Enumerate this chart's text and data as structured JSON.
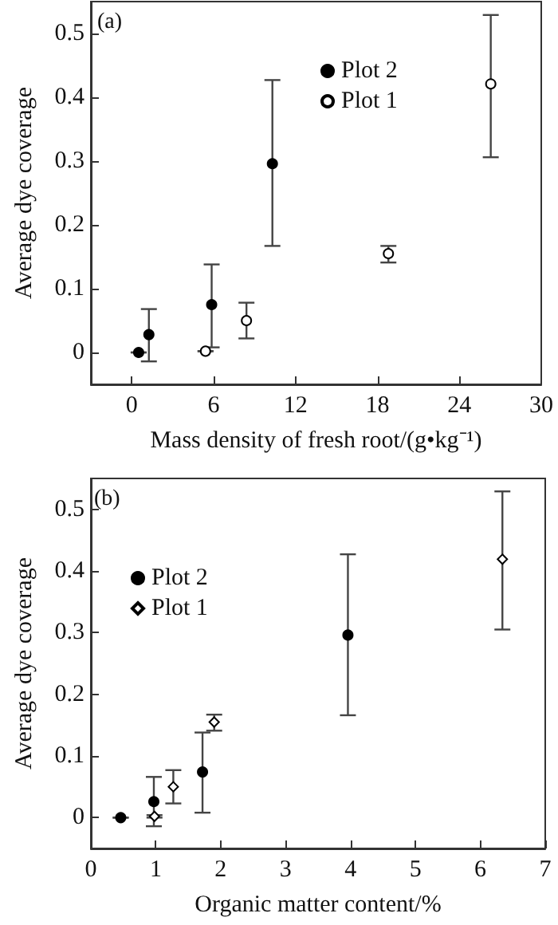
{
  "chart_data": [
    {
      "type": "scatter",
      "title": "(a)",
      "xlabel": "Mass density of fresh root/(g•kg⁻¹)",
      "ylabel": "Average dye coverage",
      "xlim": [
        -3,
        30
      ],
      "xticks": [
        0,
        6,
        12,
        18,
        24,
        30
      ],
      "ylim": [
        -0.05,
        0.55
      ],
      "yticks": [
        0,
        0.1,
        0.2,
        0.3,
        0.4,
        0.5
      ],
      "grid": false,
      "legend": "top right",
      "series": [
        {
          "name": "Plot 2",
          "color": "#000000",
          "marker": "circle",
          "x": [
            0.5,
            1.25,
            5.85,
            10.3
          ],
          "values": [
            0,
            0.028,
            0.075,
            0.296
          ],
          "errors": [
            0,
            [
              -0.014,
              0.068
            ],
            [
              0.008,
              0.138
            ],
            [
              0.167,
              0.427
            ]
          ]
        },
        {
          "name": "Plot 1",
          "color": "#ffffff",
          "marker": "circle",
          "x": [
            5.4,
            8.4,
            18.8,
            26.3
          ],
          "values": [
            0.002,
            0.05,
            0.155,
            0.421
          ],
          "errors": [
            0,
            [
              0.022,
              0.078
            ],
            [
              0.141,
              0.167
            ],
            [
              0.306,
              0.529
            ]
          ]
        }
      ]
    },
    {
      "type": "scatter",
      "title": "(b)",
      "xlabel": "Organic matter content/%",
      "ylabel": "Average dye coverage",
      "xlim": [
        0,
        7
      ],
      "xticks": [
        0,
        1,
        2,
        3,
        4,
        5,
        6,
        7
      ],
      "ylim": [
        -0.05,
        0.55
      ],
      "yticks": [
        0,
        0.1,
        0.2,
        0.3,
        0.4,
        0.5
      ],
      "grid": false,
      "legend": "top left",
      "series": [
        {
          "name": "Plot 2",
          "color": "#000000",
          "marker": "circle",
          "x": [
            0.46,
            0.97,
            1.72,
            3.96
          ],
          "values": [
            0,
            0.026,
            0.074,
            0.296
          ],
          "errors": [
            0,
            [
              -0.014,
              0.066
            ],
            [
              0.008,
              0.138
            ],
            [
              0.166,
              0.427
            ]
          ]
        },
        {
          "name": "Plot 1",
          "color": "#ffffff",
          "marker": "diamond",
          "x": [
            0.98,
            1.27,
            1.9,
            6.34
          ],
          "values": [
            0.002,
            0.05,
            0.155,
            0.419
          ],
          "errors": [
            0.002,
            [
              0.023,
              0.077
            ],
            [
              0.141,
              0.167
            ],
            [
              0.305,
              0.529
            ]
          ]
        }
      ]
    }
  ]
}
